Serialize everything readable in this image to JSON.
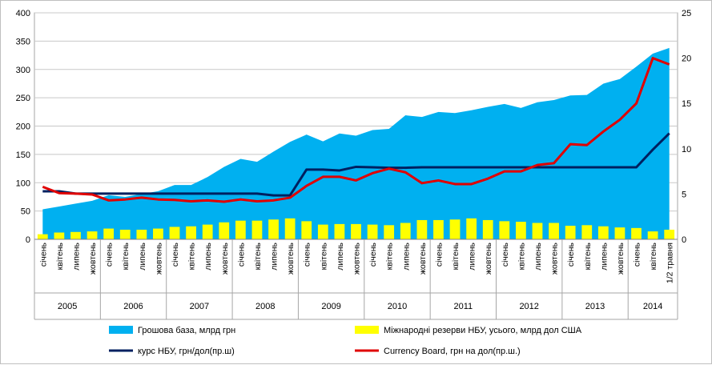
{
  "chart_data": {
    "type": "bar",
    "categories": [
      "січень",
      "квітень",
      "липень",
      "жовтень",
      "січень",
      "квітень",
      "липень",
      "жовтень",
      "січень",
      "квітень",
      "липень",
      "жовтень",
      "січень",
      "квітень",
      "липень",
      "жовтень",
      "січень",
      "квітень",
      "липень",
      "жовтень",
      "січень",
      "квітень",
      "липень",
      "жовтень",
      "січень",
      "квітень",
      "липень",
      "жовтень",
      "січень",
      "квітень",
      "липень",
      "жовтень",
      "січень",
      "квітень",
      "липень",
      "жовтень",
      "січень",
      "квітень",
      "1/2 травня"
    ],
    "years": [
      "2005",
      "2006",
      "2007",
      "2008",
      "2009",
      "2010",
      "2011",
      "2012",
      "2013",
      "2014"
    ],
    "year_spans": [
      4,
      4,
      4,
      4,
      4,
      4,
      4,
      4,
      4,
      3
    ],
    "y_left": {
      "lim": [
        0,
        400
      ],
      "ticks": [
        0,
        50,
        100,
        150,
        200,
        250,
        300,
        350,
        400
      ]
    },
    "y_right": {
      "lim": [
        0,
        25
      ],
      "ticks": [
        0,
        5,
        10,
        15,
        20,
        25
      ]
    },
    "series": [
      {
        "name": "Грошова база, млрд грн",
        "kind": "area",
        "axis": "left",
        "color": "#00b0f0",
        "values": [
          53,
          58,
          63,
          68,
          78,
          75,
          80,
          85,
          96,
          96,
          110,
          128,
          142,
          137,
          155,
          172,
          185,
          173,
          187,
          183,
          193,
          195,
          219,
          216,
          225,
          223,
          228,
          234,
          239,
          232,
          242,
          246,
          254,
          255,
          275,
          283,
          305,
          328,
          338
        ]
      },
      {
        "name": "Міжнародні резерви НБУ, усього, млрд дол США",
        "kind": "bar",
        "axis": "left",
        "color": "#ffff00",
        "values": [
          9,
          12,
          13,
          14,
          19,
          17,
          17,
          19,
          22,
          23,
          26,
          30,
          33,
          33,
          35,
          37,
          32,
          26,
          27,
          27,
          26,
          25,
          29,
          34,
          34,
          35,
          37,
          34,
          32,
          31,
          29,
          29,
          24,
          25,
          23,
          21,
          20,
          14,
          17
        ]
      },
      {
        "name": "курс НБУ, грн/дол(пр.ш)",
        "kind": "line",
        "axis": "right",
        "color": "#002060",
        "values": [
          5.3,
          5.3,
          5.05,
          5.05,
          5.05,
          5.05,
          5.05,
          5.05,
          5.05,
          5.05,
          5.05,
          5.05,
          5.05,
          5.05,
          4.85,
          4.85,
          7.7,
          7.7,
          7.6,
          8.0,
          7.95,
          7.9,
          7.9,
          7.95,
          7.95,
          7.95,
          7.95,
          7.95,
          7.95,
          7.95,
          7.95,
          7.95,
          7.95,
          7.95,
          7.95,
          7.95,
          7.95,
          9.9,
          11.7
        ]
      },
      {
        "name": "Currency Board, грн на дол(пр.ш.)",
        "kind": "line",
        "axis": "right",
        "color": "#e00000",
        "values": [
          5.8,
          5.1,
          5.05,
          4.95,
          4.3,
          4.4,
          4.6,
          4.4,
          4.35,
          4.2,
          4.3,
          4.15,
          4.4,
          4.2,
          4.3,
          4.6,
          5.9,
          6.9,
          6.9,
          6.5,
          7.3,
          7.8,
          7.4,
          6.2,
          6.5,
          6.1,
          6.1,
          6.7,
          7.5,
          7.5,
          8.2,
          8.4,
          10.5,
          10.4,
          11.9,
          13.2,
          15.0,
          20.0,
          19.3
        ]
      }
    ],
    "legend_position": "bottom",
    "grid": true
  }
}
